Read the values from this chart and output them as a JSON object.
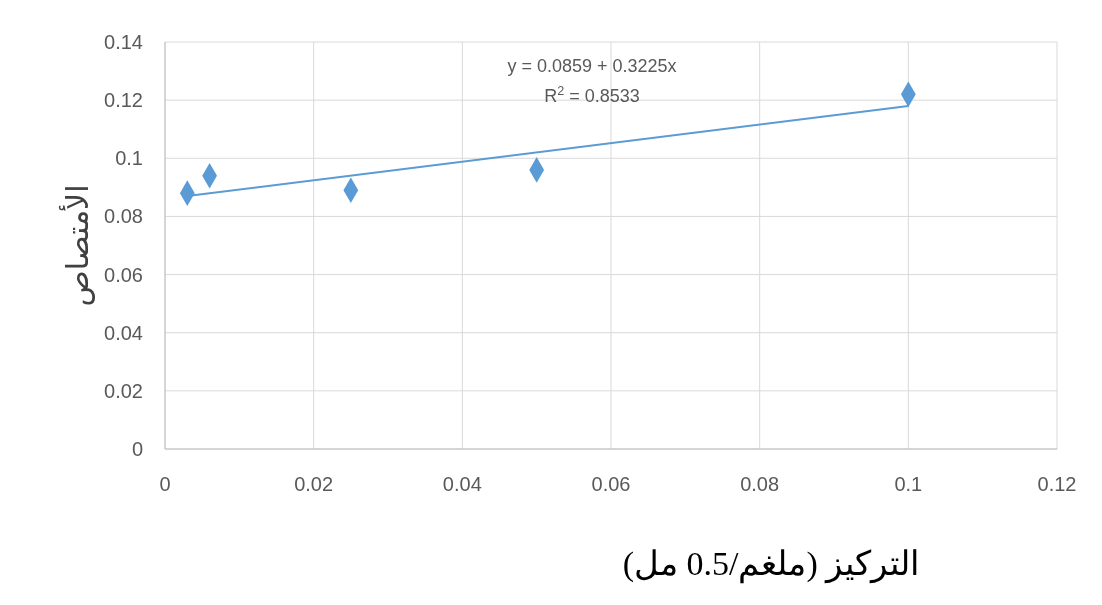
{
  "chart_data": {
    "type": "scatter",
    "xlabel": "التركيز (ملغم/0.5 مل)",
    "ylabel": "الأمتصاص",
    "xlim": [
      0,
      0.12
    ],
    "xticks": [
      0,
      0.02,
      0.04,
      0.06,
      0.08,
      0.1,
      0.12
    ],
    "ylim": [
      0,
      0.14
    ],
    "yticks": [
      0,
      0.02,
      0.04,
      0.06,
      0.08,
      0.1,
      0.12,
      0.14
    ],
    "grid": true,
    "marker": "diamond",
    "series": [
      {
        "color": "#5b9bd5",
        "x": [
          0.003,
          0.006,
          0.025,
          0.05,
          0.1
        ],
        "values": [
          0.088,
          0.094,
          0.089,
          0.096,
          0.122
        ]
      },
      {
        "type": "line",
        "marker": "none",
        "color": "#5b9bd5",
        "x": [
          0.003,
          0.1
        ],
        "values": [
          0.087,
          0.118
        ]
      }
    ],
    "annotations": [
      "y =  0.0859 + 0.3225x",
      "R$^{2}$ = 0.8533"
    ]
  }
}
